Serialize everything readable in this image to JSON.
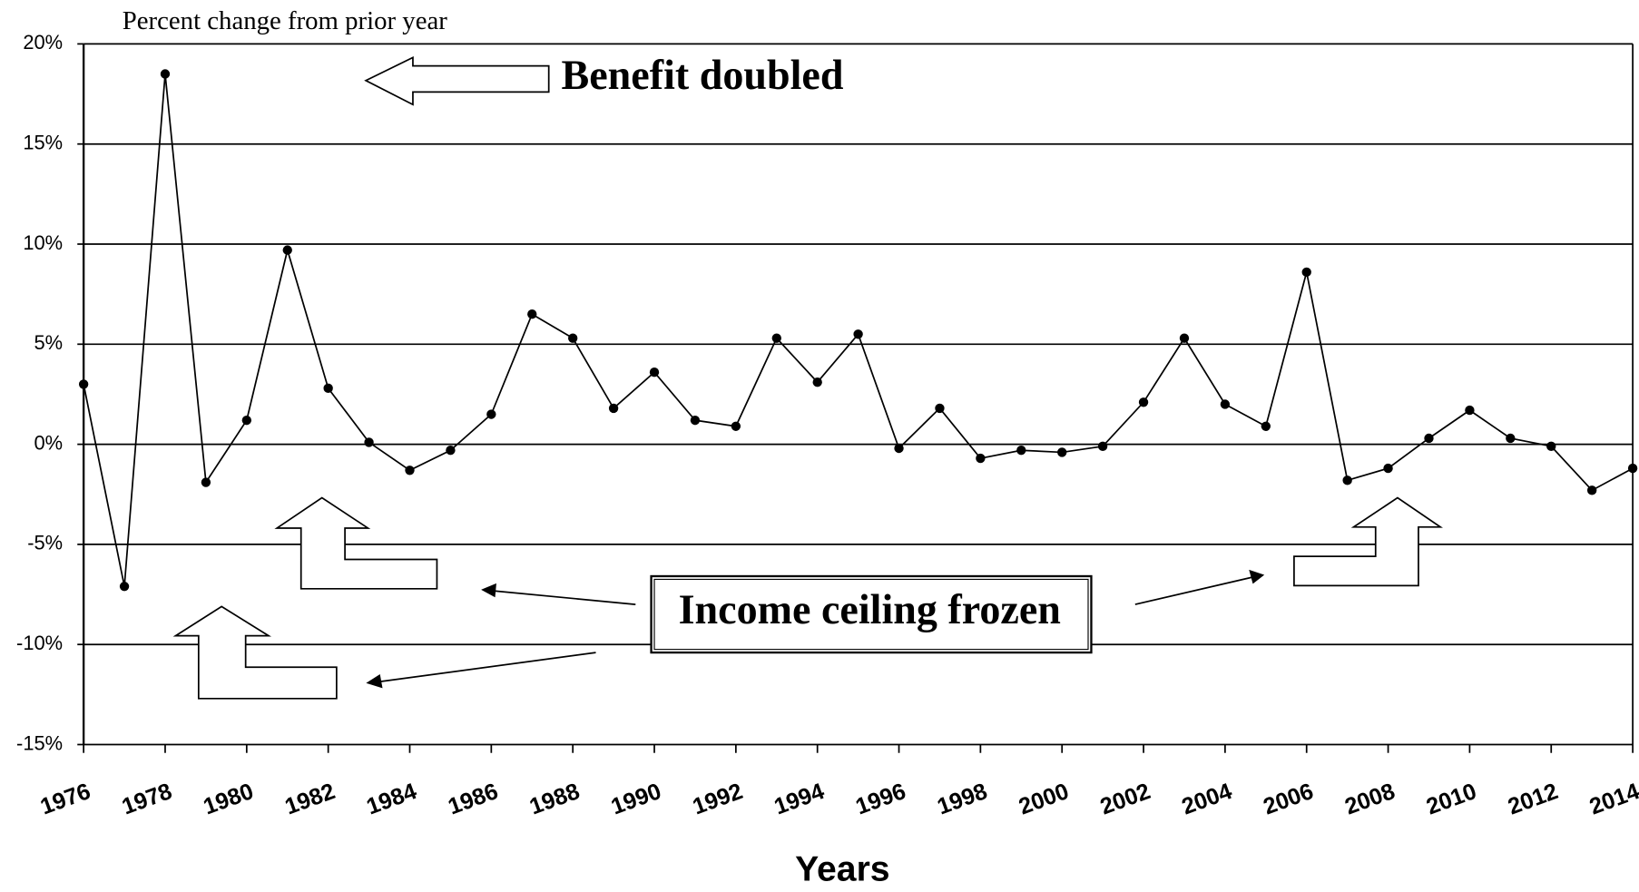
{
  "chart_data": {
    "type": "line",
    "title": "Percent change from prior year",
    "x_label": "Years",
    "annotations": [
      "Benefit doubled",
      "Income ceiling frozen"
    ],
    "x": [
      1976,
      1977,
      1978,
      1979,
      1980,
      1981,
      1982,
      1983,
      1984,
      1985,
      1986,
      1987,
      1988,
      1989,
      1990,
      1991,
      1992,
      1993,
      1994,
      1995,
      1996,
      1997,
      1998,
      1999,
      2000,
      2001,
      2002,
      2003,
      2004,
      2005,
      2006,
      2007,
      2008,
      2009,
      2010,
      2011,
      2012,
      2013,
      2014
    ],
    "series": [
      {
        "name": "Percent change",
        "color": "#000000",
        "values": [
          3.0,
          -7.1,
          18.5,
          -1.9,
          1.2,
          9.7,
          2.8,
          0.1,
          -1.3,
          -0.3,
          1.5,
          6.5,
          5.3,
          1.8,
          3.6,
          1.2,
          0.9,
          5.3,
          3.1,
          5.5,
          -0.2,
          1.8,
          -0.7,
          -0.3,
          -0.4,
          -0.1,
          2.1,
          5.3,
          2.0,
          0.9,
          8.6,
          -1.8,
          -1.2,
          0.3,
          1.7,
          0.3,
          -0.1,
          -2.3,
          -1.2
        ]
      }
    ],
    "xlim": [
      1976,
      2014
    ],
    "xticks": [
      1976,
      1978,
      1980,
      1982,
      1984,
      1986,
      1988,
      1990,
      1992,
      1994,
      1996,
      1998,
      2000,
      2002,
      2004,
      2006,
      2008,
      2010,
      2012,
      2014
    ],
    "ylim": [
      -15,
      20
    ],
    "yticks": [
      {
        "value": -15,
        "label": "-15%"
      },
      {
        "value": -10,
        "label": "-10%"
      },
      {
        "value": -5,
        "label": "-5%"
      },
      {
        "value": 0,
        "label": "0%"
      },
      {
        "value": 5,
        "label": "5%"
      },
      {
        "value": 10,
        "label": "10%"
      },
      {
        "value": 15,
        "label": "15%"
      },
      {
        "value": 20,
        "label": "20%"
      }
    ],
    "grid": true
  }
}
